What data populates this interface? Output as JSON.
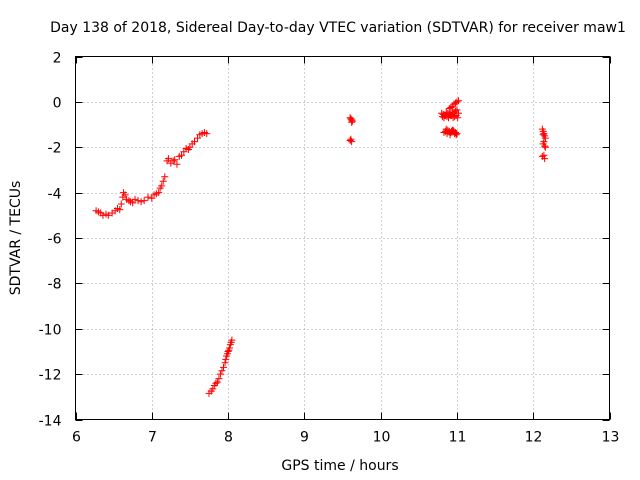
{
  "chart_data": {
    "type": "scatter",
    "title": "Day 138 of 2018, Sidereal Day-to-day VTEC variation (SDTVAR) for receiver maw1",
    "xlabel": "GPS time / hours",
    "ylabel": "SDTVAR / TECUs",
    "xlim": [
      6,
      13
    ],
    "ylim": [
      -14,
      2
    ],
    "xticks": [
      6,
      7,
      8,
      9,
      10,
      11,
      12,
      13
    ],
    "yticks": [
      -14,
      -12,
      -10,
      -8,
      -6,
      -4,
      -2,
      0,
      2
    ],
    "xtick_labels": [
      "6",
      "7",
      "8",
      "9",
      "10",
      "11",
      "12",
      "13"
    ],
    "ytick_labels": [
      "-14",
      "-12",
      "-10",
      "-8",
      "-6",
      "-4",
      "-2",
      "0",
      "2"
    ],
    "grid": true,
    "marker": "+",
    "color": "#ff0000",
    "series": [
      {
        "name": "SDTVAR",
        "x": [
          6.27,
          6.3,
          6.33,
          6.36,
          6.4,
          6.43,
          6.48,
          6.52,
          6.55,
          6.58,
          6.6,
          6.62,
          6.63,
          6.65,
          6.67,
          6.7,
          6.72,
          6.75,
          6.78,
          6.82,
          6.86,
          6.9,
          6.95,
          7.0,
          7.03,
          7.06,
          7.09,
          7.11,
          7.13,
          7.15,
          7.17,
          7.2,
          7.22,
          7.25,
          7.28,
          7.3,
          7.33,
          7.36,
          7.39,
          7.42,
          7.45,
          7.48,
          7.5,
          7.53,
          7.56,
          7.6,
          7.63,
          7.66,
          7.69,
          7.72,
          7.75,
          7.78,
          7.8,
          7.82,
          7.84,
          7.86,
          7.88,
          7.9,
          7.92,
          7.94,
          7.96,
          7.97,
          7.98,
          7.99,
          8.0,
          8.01,
          8.02,
          8.03,
          8.04,
          8.05,
          9.6,
          9.61,
          9.62,
          9.63,
          9.62,
          9.61,
          9.6,
          9.62,
          10.8,
          10.82,
          10.84,
          10.86,
          10.88,
          10.9,
          10.92,
          10.94,
          10.96,
          10.98,
          11.0,
          11.02,
          10.81,
          10.83,
          10.85,
          10.87,
          10.89,
          10.91,
          10.93,
          10.95,
          10.97,
          10.99,
          11.01,
          10.9,
          10.92,
          10.94,
          10.96,
          10.98,
          11.0,
          11.02,
          10.86,
          10.88,
          10.9,
          10.92,
          10.94,
          10.96,
          10.98,
          11.0,
          10.83,
          10.85,
          10.87,
          10.91,
          10.93,
          10.95,
          10.97,
          10.99,
          12.12,
          12.13,
          12.14,
          12.15,
          12.16,
          12.14,
          12.13,
          12.15,
          12.16,
          12.14,
          12.12,
          12.15,
          12.13
        ],
        "y": [
          -4.8,
          -4.85,
          -4.9,
          -5.0,
          -4.95,
          -5.0,
          -4.9,
          -4.8,
          -4.7,
          -4.75,
          -4.5,
          -4.2,
          -4.0,
          -4.1,
          -4.3,
          -4.35,
          -4.4,
          -4.45,
          -4.3,
          -4.35,
          -4.4,
          -4.35,
          -4.2,
          -4.25,
          -4.1,
          -4.05,
          -4.0,
          -3.8,
          -3.7,
          -3.5,
          -3.3,
          -2.6,
          -2.5,
          -2.7,
          -2.6,
          -2.55,
          -2.75,
          -2.4,
          -2.35,
          -2.2,
          -2.05,
          -2.1,
          -2.0,
          -1.85,
          -1.75,
          -1.6,
          -1.45,
          -1.4,
          -1.35,
          -1.4,
          -12.85,
          -12.75,
          -12.65,
          -12.5,
          -12.4,
          -12.35,
          -12.2,
          -12.0,
          -11.85,
          -11.7,
          -11.5,
          -11.35,
          -11.2,
          -11.1,
          -11.0,
          -10.95,
          -10.85,
          -10.7,
          -10.6,
          -10.5,
          -0.7,
          -0.75,
          -0.8,
          -0.85,
          -0.9,
          -1.65,
          -1.7,
          -1.75,
          -0.5,
          -0.55,
          -0.6,
          -0.45,
          -0.5,
          -0.55,
          -0.6,
          -0.5,
          -0.45,
          -0.4,
          -0.35,
          -0.5,
          -0.65,
          -0.7,
          -0.6,
          -0.65,
          -0.7,
          -0.55,
          -0.6,
          -0.7,
          -0.65,
          -0.6,
          -0.7,
          -0.3,
          -0.25,
          -0.2,
          -0.1,
          -0.05,
          0.0,
          0.05,
          -1.2,
          -1.25,
          -1.3,
          -1.35,
          -1.25,
          -1.3,
          -1.35,
          -1.4,
          -1.35,
          -1.3,
          -1.4,
          -1.45,
          -1.3,
          -1.25,
          -1.4,
          -1.45,
          -1.2,
          -1.3,
          -1.4,
          -1.5,
          -1.6,
          -1.75,
          -1.85,
          -1.95,
          -2.0,
          -2.35,
          -2.4,
          -2.5,
          -1.45
        ]
      }
    ]
  }
}
